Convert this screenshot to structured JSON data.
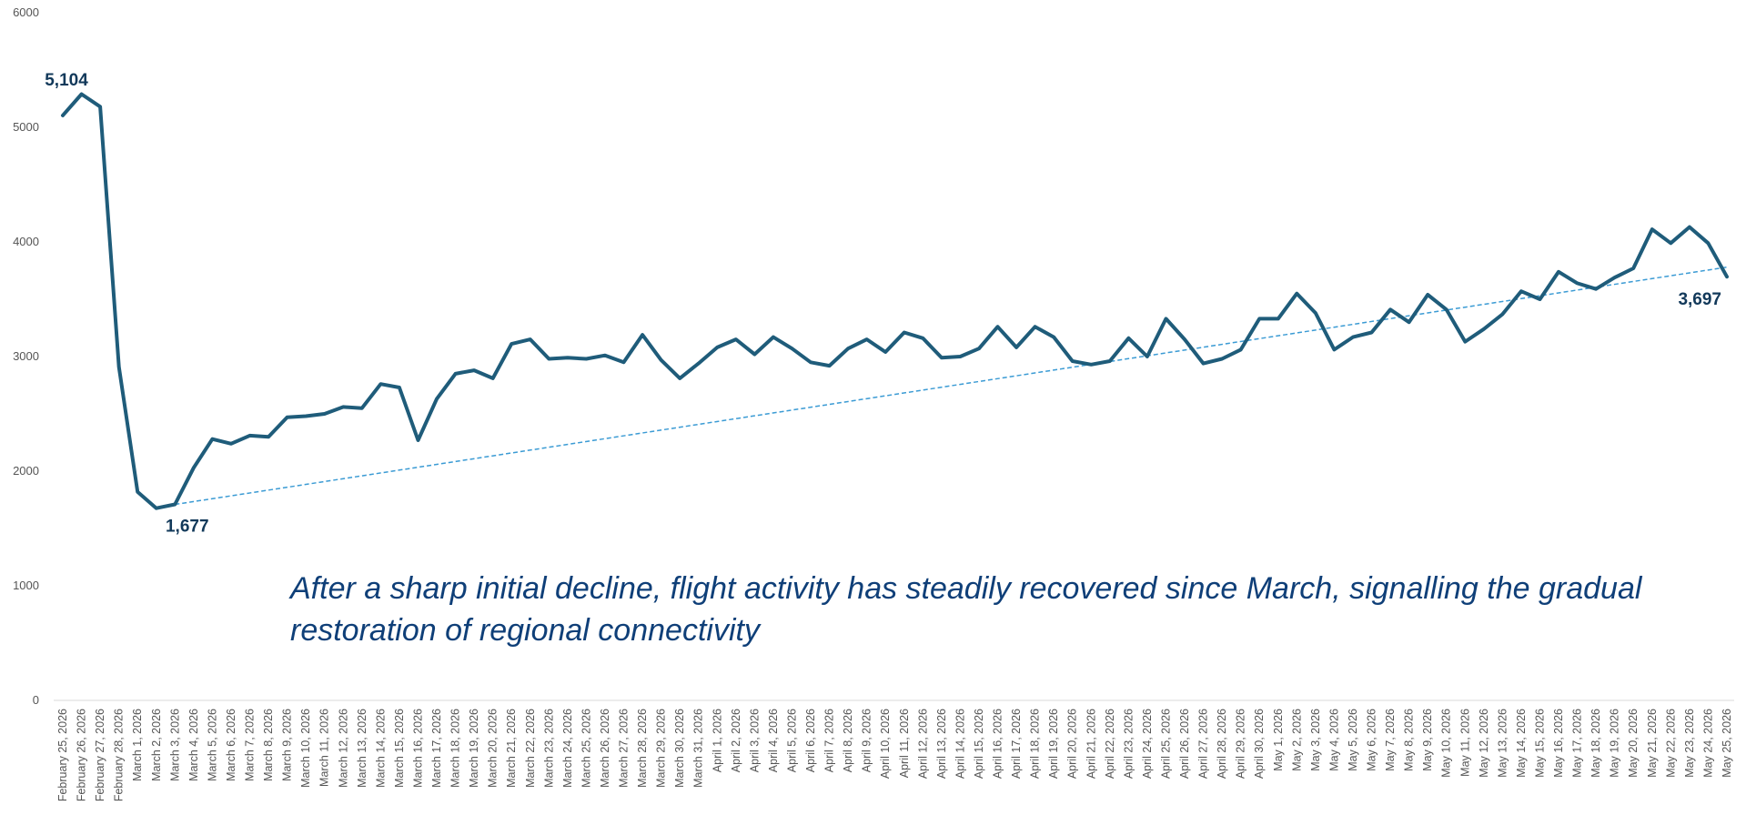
{
  "chart_data": {
    "type": "line",
    "title": "",
    "xlabel": "",
    "ylabel": "",
    "ylim": [
      0,
      6000
    ],
    "yticks": [
      "0",
      "1000",
      "2000",
      "3000",
      "4000",
      "5000",
      "6000"
    ],
    "grid": false,
    "legend": "none",
    "colors": {
      "line": "#1f5c7a",
      "trend": "#3b9bd4",
      "label": "#12395a",
      "annotation": "#0f3f78",
      "axis": "#d9d9d9"
    },
    "x": [
      "February 25, 2026",
      "February 26, 2026",
      "February 27, 2026",
      "February 28, 2026",
      "March 1, 2026",
      "March 2, 2026",
      "March 3, 2026",
      "March 4, 2026",
      "March 5, 2026",
      "March 6, 2026",
      "March 7, 2026",
      "March 8, 2026",
      "March 9, 2026",
      "March 10, 2026",
      "March 11, 2026",
      "March 12, 2026",
      "March 13, 2026",
      "March 14, 2026",
      "March 15, 2026",
      "March 16, 2026",
      "March 17, 2026",
      "March 18, 2026",
      "March 19, 2026",
      "March 20, 2026",
      "March 21, 2026",
      "March 22, 2026",
      "March 23, 2026",
      "March 24, 2026",
      "March 25, 2026",
      "March 26, 2026",
      "March 27, 2026",
      "March 28, 2026",
      "March 29, 2026",
      "March 30, 2026",
      "March 31, 2026",
      "April 1, 2026",
      "April 2, 2026",
      "April 3, 2026",
      "April 4, 2026",
      "April 5, 2026",
      "April 6, 2026",
      "April 7, 2026",
      "April 8, 2026",
      "April 9, 2026",
      "April 10, 2026",
      "April 11, 2026",
      "April 12, 2026",
      "April 13, 2026",
      "April 14, 2026",
      "April 15, 2026",
      "April 16, 2026",
      "April 17, 2026",
      "April 18, 2026",
      "April 19, 2026",
      "April 20, 2026",
      "April 21, 2026",
      "April 22, 2026",
      "April 23, 2026",
      "April 24, 2026",
      "April 25, 2026",
      "April 26, 2026",
      "April 27, 2026",
      "April 28, 2026",
      "April 29, 2026",
      "April 30, 2026",
      "May 1, 2026",
      "May 2, 2026",
      "May 3, 2026",
      "May 4, 2026",
      "May 5, 2026",
      "May 6, 2026",
      "May 7, 2026",
      "May 8, 2026",
      "May 9, 2026",
      "May 10, 2026",
      "May 11, 2026",
      "May 12, 2026",
      "May 13, 2026",
      "May 14, 2026",
      "May 15, 2026",
      "May 16, 2026",
      "May 17, 2026",
      "May 18, 2026",
      "May 19, 2026",
      "May 20, 2026",
      "May 21, 2026",
      "May 22, 2026",
      "May 23, 2026",
      "May 24, 2026",
      "May 25, 2026"
    ],
    "series": [
      {
        "values": [
          5104,
          5290,
          5180,
          2910,
          1820,
          1677,
          1710,
          2030,
          2280,
          2240,
          2310,
          2300,
          2470,
          2480,
          2500,
          2560,
          2550,
          2760,
          2730,
          2270,
          2630,
          2850,
          2880,
          2810,
          3110,
          3150,
          2980,
          2990,
          2980,
          3010,
          2950,
          3190,
          2970,
          2810,
          2940,
          3080,
          3150,
          3020,
          3170,
          3070,
          2950,
          2920,
          3070,
          3150,
          3040,
          3210,
          3160,
          2990,
          3000,
          3070,
          3260,
          3080,
          3260,
          3170,
          2960,
          2930,
          2960,
          3160,
          3000,
          3330,
          3150,
          2940,
          2980,
          3060,
          3330,
          3330,
          3550,
          3380,
          3060,
          3170,
          3210,
          3410,
          3300,
          3540,
          3410,
          3130,
          3240,
          3370,
          3570,
          3500,
          3740,
          3640,
          3590,
          3690,
          3770,
          4110,
          3990,
          4130,
          3990,
          3697
        ]
      }
    ],
    "trendline": {
      "type": "linear",
      "from_index": 6,
      "from_value": 1710,
      "to_index": 89,
      "to_value": 3780
    },
    "data_labels": [
      {
        "index": 0,
        "text": "5,104",
        "position": "above"
      },
      {
        "index": 5,
        "text": "1,677",
        "position": "below"
      },
      {
        "index": 89,
        "text": "3,697",
        "position": "below"
      }
    ],
    "annotation": {
      "line1": "After a sharp initial decline, flight activity has steadily recovered since March, signalling the gradual",
      "line2": "restoration of regional connectivity"
    }
  }
}
